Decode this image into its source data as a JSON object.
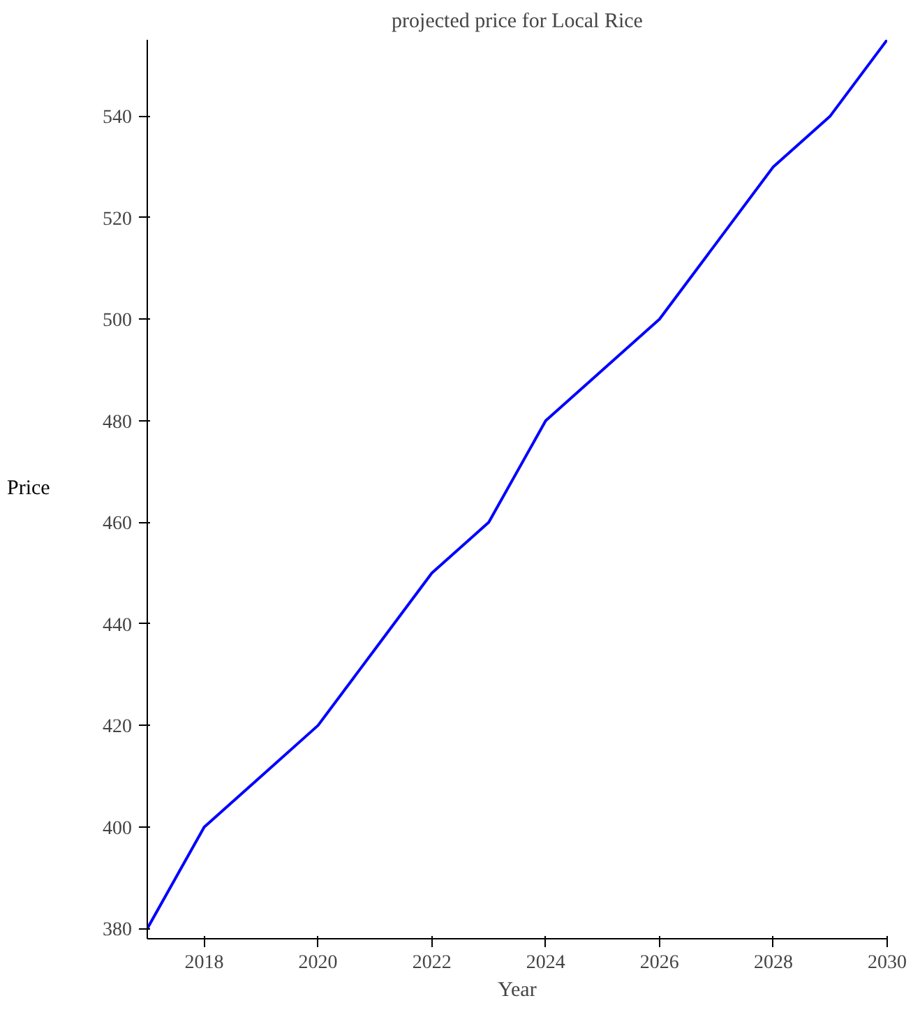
{
  "chart_data": {
    "type": "line",
    "title": "projected price for Local Rice",
    "xlabel": "Year",
    "ylabel": "Price",
    "x": [
      2017,
      2018,
      2019,
      2020,
      2021,
      2022,
      2023,
      2024,
      2025,
      2026,
      2027,
      2028,
      2029,
      2030
    ],
    "series": [
      {
        "color": "#0000ff",
        "values": [
          380,
          400,
          410,
          420,
          435,
          450,
          460,
          480,
          490,
          500,
          515,
          530,
          540,
          555
        ]
      }
    ],
    "xlim": [
      2017,
      2030
    ],
    "ylim": [
      378,
      555
    ],
    "xticks": [
      2018,
      2020,
      2022,
      2024,
      2026,
      2028,
      2030
    ],
    "yticks": [
      380,
      400,
      420,
      440,
      460,
      480,
      500,
      520,
      540
    ],
    "grid": false,
    "line_style": "solid"
  }
}
